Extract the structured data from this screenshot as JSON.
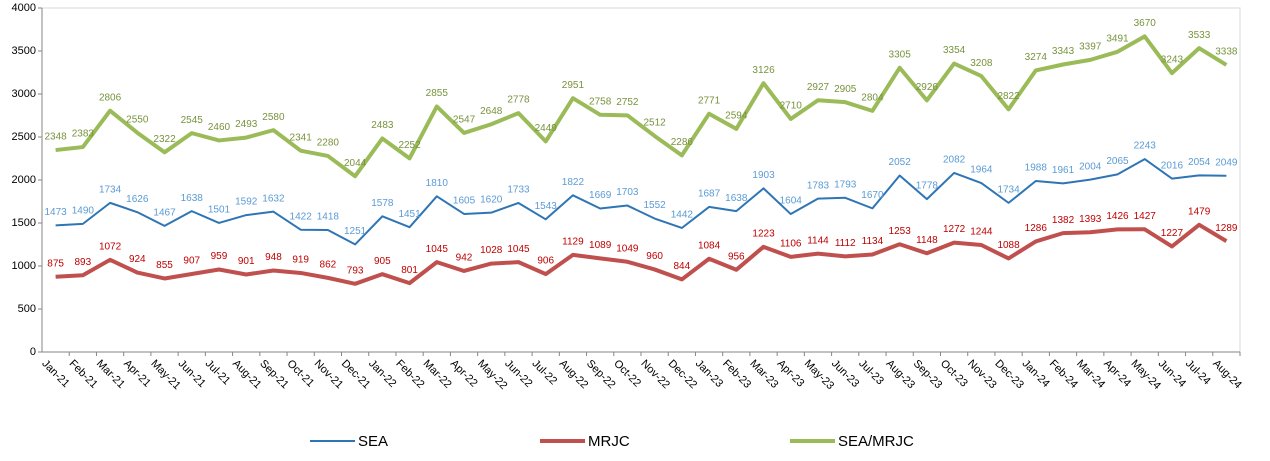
{
  "chart_data": {
    "type": "line",
    "categories": [
      "Jan-21",
      "Feb-21",
      "Mar-21",
      "Apr-21",
      "May-21",
      "Jun-21",
      "Jul-21",
      "Aug-21",
      "Sep-21",
      "Oct-21",
      "Nov-21",
      "Dec-21",
      "Jan-22",
      "Feb-22",
      "Mar-22",
      "Apr-22",
      "May-22",
      "Jun-22",
      "Jul-22",
      "Aug-22",
      "Sep-22",
      "Oct-22",
      "Nov-22",
      "Dec-22",
      "Jan-23",
      "Feb-23",
      "Mar-23",
      "Apr-23",
      "May-23",
      "Jun-23",
      "Jul-23",
      "Aug-23",
      "Sep-23",
      "Oct-23",
      "Nov-23",
      "Dec-23",
      "Jan-24",
      "Feb-24",
      "Mar-24",
      "Apr-24",
      "May-24",
      "Jun-24",
      "Jul-24",
      "Aug-24"
    ],
    "series": [
      {
        "name": "SEA",
        "color": "#2e75b6",
        "label_color": "#5b9bd5",
        "width": 2,
        "values": [
          1473,
          1490,
          1734,
          1626,
          1467,
          1638,
          1501,
          1592,
          1632,
          1422,
          1418,
          1251,
          1578,
          1451,
          1810,
          1605,
          1620,
          1733,
          1543,
          1822,
          1669,
          1703,
          1552,
          1442,
          1687,
          1638,
          1903,
          1604,
          1783,
          1793,
          1670,
          2052,
          1778,
          2082,
          1964,
          1734,
          1988,
          1961,
          2004,
          2065,
          2243,
          2016,
          2054,
          2049
        ]
      },
      {
        "name": "MRJC",
        "color": "#c0504d",
        "label_color": "#c00000",
        "width": 4,
        "values": [
          875,
          893,
          1072,
          924,
          855,
          907,
          959,
          901,
          948,
          919,
          862,
          793,
          905,
          801,
          1045,
          942,
          1028,
          1045,
          906,
          1129,
          1089,
          1049,
          960,
          844,
          1084,
          956,
          1223,
          1106,
          1144,
          1112,
          1134,
          1253,
          1148,
          1272,
          1244,
          1088,
          1286,
          1382,
          1393,
          1426,
          1427,
          1227,
          1479,
          1289
        ]
      },
      {
        "name": "SEA/MRJC",
        "color": "#9bbb59",
        "label_color": "#77933c",
        "width": 4,
        "values": [
          2348,
          2383,
          2806,
          2550,
          2322,
          2545,
          2460,
          2493,
          2580,
          2341,
          2280,
          2044,
          2483,
          2252,
          2855,
          2547,
          2648,
          2778,
          2449,
          2951,
          2758,
          2752,
          2512,
          2286,
          2771,
          2594,
          3126,
          2710,
          2927,
          2905,
          2804,
          3305,
          2926,
          3354,
          3208,
          2822,
          3274,
          3343,
          3397,
          3491,
          3670,
          3243,
          3533,
          3338
        ]
      }
    ],
    "ylim": [
      0,
      4000
    ],
    "yticks": [
      0,
      500,
      1000,
      1500,
      2000,
      2500,
      3000,
      3500,
      4000
    ],
    "grid": false,
    "legend": "bottom"
  }
}
